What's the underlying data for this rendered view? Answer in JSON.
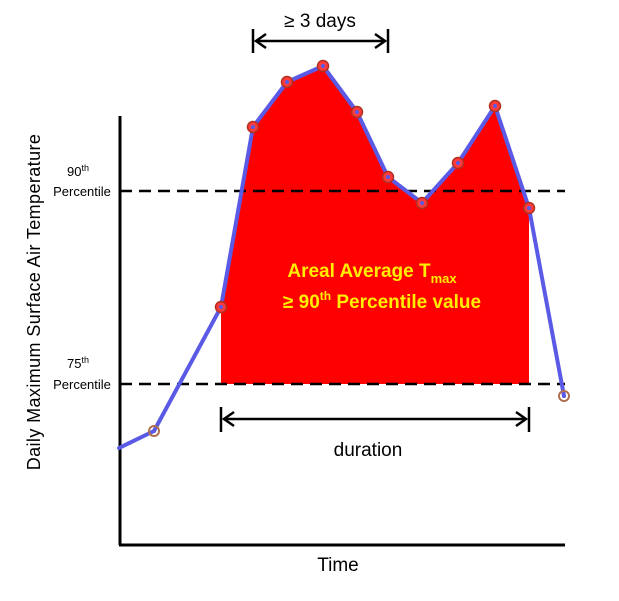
{
  "axis": {
    "ylabel": "Daily Maximum Surface Air Temperature",
    "xlabel": "Time"
  },
  "thresholds": {
    "p90": {
      "sup": "90",
      "suffix": "th",
      "line2": "Percentile"
    },
    "p75": {
      "sup": "75",
      "suffix": "th",
      "line2": "Percentile"
    }
  },
  "annotations": {
    "days": "≥ 3 days",
    "duration": "duration",
    "center_line1_main": "Areal Average T",
    "center_line1_sub": "max",
    "center_line2_pre": "≥ 90",
    "center_line2_sup": "th",
    "center_line2_post": " Percentile value"
  },
  "colors": {
    "fill": "#ff0000",
    "line": "#5a5ae6",
    "marker": "#ff3b3b",
    "marker_edge": "#b03020"
  }
}
